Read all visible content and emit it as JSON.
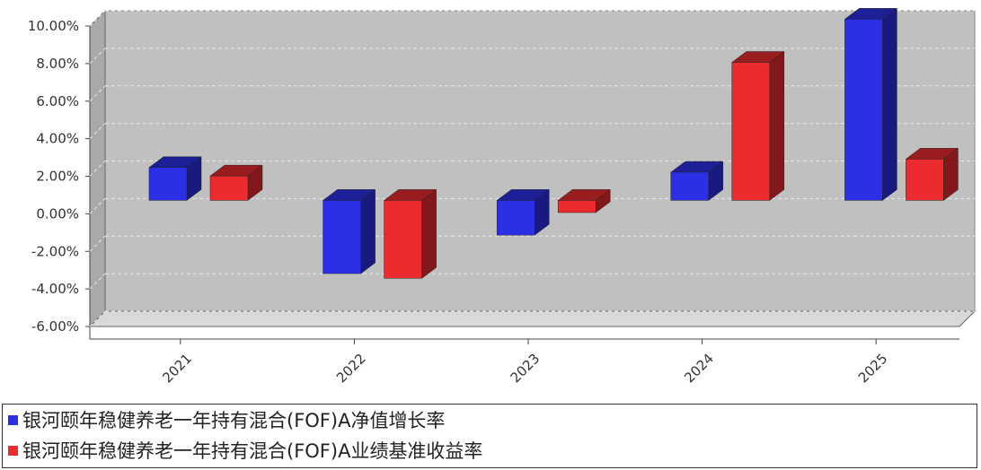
{
  "chart_data": {
    "type": "bar",
    "categories": [
      "2021",
      "2022",
      "2023",
      "2024",
      "2025"
    ],
    "series": [
      {
        "name": "银河颐年稳健养老一年持有混合(FOF)A净值增长率",
        "color": "#2b2fe6",
        "values": [
          1.75,
          -3.9,
          -1.85,
          1.5,
          9.65
        ]
      },
      {
        "name": "银河颐年稳健养老一年持有混合(FOF)A业绩基准收益率",
        "color": "#ec2b2e",
        "values": [
          1.3,
          -4.15,
          -0.65,
          7.35,
          2.2
        ]
      }
    ],
    "ylim": [
      -6,
      10
    ],
    "yticks": [
      "-6.00%",
      "-4.00%",
      "-2.00%",
      "0.00%",
      "2.00%",
      "4.00%",
      "6.00%",
      "8.00%",
      "10.00%"
    ],
    "grid": true,
    "legend_position": "bottom",
    "background": "#c0c0c0"
  }
}
